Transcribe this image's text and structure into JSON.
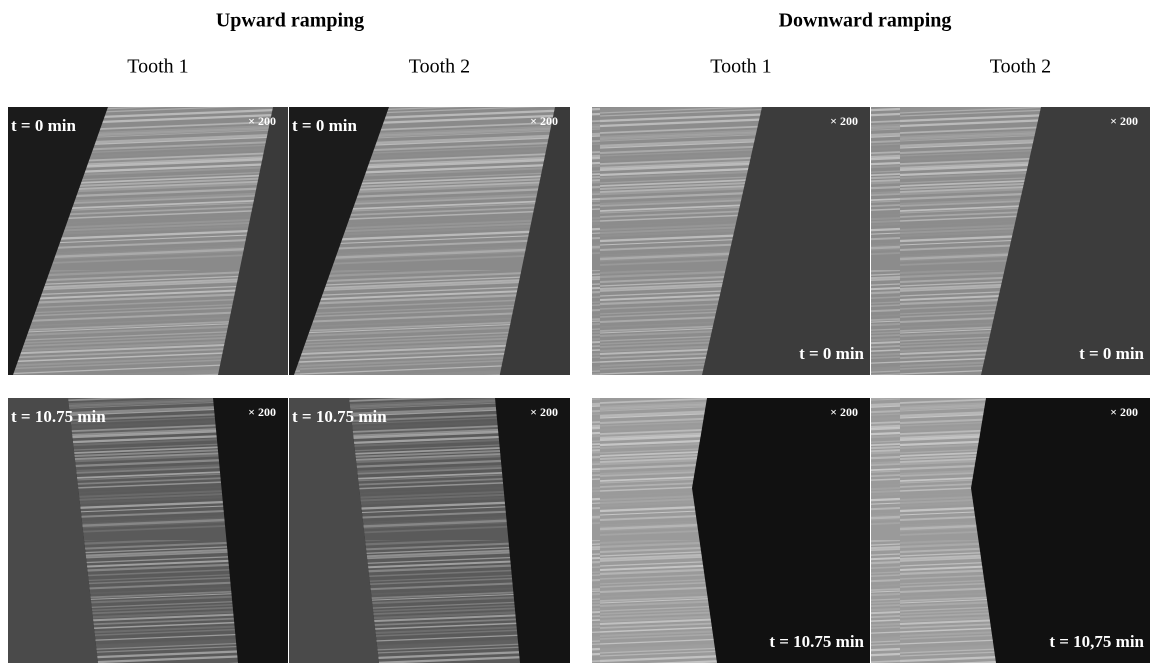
{
  "groups": [
    {
      "title": "Upward ramping",
      "columns": [
        {
          "label": "Tooth 1",
          "panels": [
            {
              "time": "t = 0 min",
              "magnification": "× 200"
            },
            {
              "time": "t = 10.75 min",
              "magnification": "× 200"
            }
          ]
        },
        {
          "label": "Tooth 2",
          "panels": [
            {
              "time": "t = 0 min",
              "magnification": "× 200"
            },
            {
              "time": "t = 10.75 min",
              "magnification": "× 200"
            }
          ]
        }
      ]
    },
    {
      "title": "Downward ramping",
      "columns": [
        {
          "label": "Tooth 1",
          "panels": [
            {
              "time": "t = 0 min",
              "magnification": "× 200"
            },
            {
              "time": "t = 10.75 min",
              "magnification": "× 200"
            }
          ]
        },
        {
          "label": "Tooth 2",
          "panels": [
            {
              "time": "t = 0 min",
              "magnification": "× 200"
            },
            {
              "time": "t = 10,75 min",
              "magnification": "× 200"
            }
          ]
        }
      ]
    }
  ]
}
